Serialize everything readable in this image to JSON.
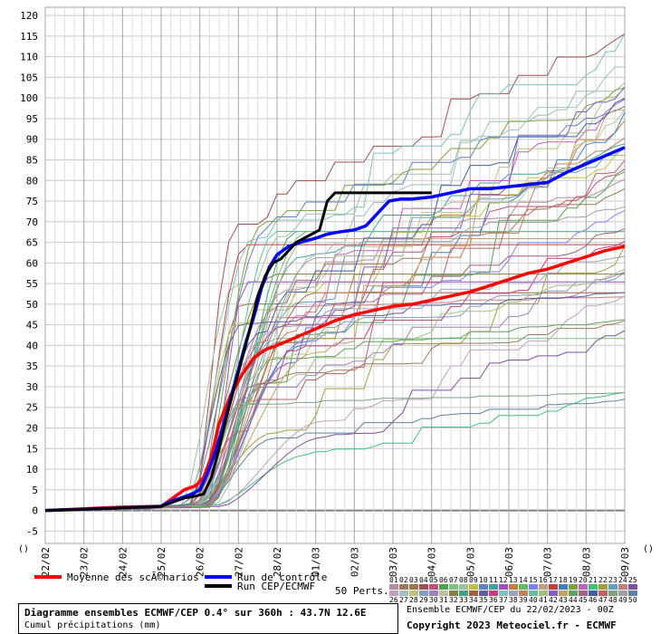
{
  "chart_data": {
    "type": "line",
    "title": "Diagramme ensembles ECMWF/CEP 0.4° sur 360h : 43.7N 12.6E",
    "subtitle": "Cumul précipitations (mm)",
    "ylim": [
      -8,
      122
    ],
    "yticks": [
      -5,
      0,
      5,
      10,
      15,
      20,
      25,
      30,
      35,
      40,
      45,
      50,
      55,
      60,
      65,
      70,
      75,
      80,
      85,
      90,
      95,
      100,
      105,
      110,
      115,
      120
    ],
    "xlim": [
      0,
      15
    ],
    "x_dates": [
      "22/02",
      "23/02",
      "24/02",
      "25/02",
      "26/02",
      "27/02",
      "28/02",
      "01/03",
      "02/03",
      "03/03",
      "04/03",
      "05/03",
      "06/03",
      "07/03",
      "08/03",
      "09/03"
    ],
    "grid": true,
    "series": [
      {
        "name": "Moyenne des scÃ©narios",
        "color": "#ff0000",
        "width": 3.5,
        "x": [
          0,
          0.5,
          1,
          1.5,
          2,
          2.5,
          3,
          3.3,
          3.6,
          3.9,
          4.1,
          4.3,
          4.5,
          4.8,
          5.1,
          5.4,
          5.7,
          6,
          6.5,
          7,
          7.5,
          8,
          8.5,
          9,
          9.5,
          10,
          10.5,
          11,
          11.5,
          12,
          12.5,
          13,
          13.5,
          14,
          14.5,
          15
        ],
        "y": [
          0,
          0.2,
          0.4,
          0.6,
          0.8,
          0.9,
          1,
          3,
          5,
          6,
          8,
          13,
          21,
          28,
          33,
          37,
          39,
          40,
          42,
          44,
          46,
          47.5,
          48.5,
          49.5,
          50,
          51,
          52,
          53,
          54.5,
          56,
          57.5,
          58.5,
          60,
          61.5,
          63,
          64
        ]
      },
      {
        "name": "Run de contrôle",
        "color": "#0000ff",
        "width": 3.5,
        "x": [
          0,
          1,
          2,
          3,
          3.2,
          3.5,
          3.8,
          4,
          4.2,
          4.4,
          4.6,
          4.8,
          5,
          5.2,
          5.4,
          5.6,
          5.8,
          6,
          6.3,
          6.6,
          7,
          7.3,
          7.6,
          8,
          8.3,
          8.6,
          8.9,
          9.2,
          9.5,
          10,
          10.5,
          11,
          11.5,
          12,
          12.5,
          13,
          13.5,
          14,
          14.5,
          15
        ],
        "y": [
          0,
          0.3,
          0.6,
          1,
          2,
          3,
          4,
          5,
          9,
          14,
          20,
          27,
          34,
          41,
          47,
          54,
          59,
          62,
          64,
          65,
          66,
          67,
          67.5,
          68,
          69,
          72,
          75,
          75.5,
          75.5,
          76,
          77,
          78,
          78,
          78.5,
          79,
          79.5,
          82,
          84,
          86,
          88
        ]
      },
      {
        "name": "Run CEP/ECMWF",
        "color": "#000000",
        "width": 3,
        "x": [
          0,
          1,
          2,
          3,
          3.3,
          3.6,
          3.9,
          4.1,
          4.3,
          4.5,
          4.7,
          4.9,
          5.1,
          5.3,
          5.5,
          5.7,
          5.9,
          6.1,
          6.3,
          6.5,
          6.7,
          6.9,
          7.1,
          7.3,
          7.5,
          7.8,
          8.2,
          8.6,
          9,
          9.5,
          10
        ],
        "y": [
          0,
          0.3,
          0.6,
          1,
          2,
          3,
          3.5,
          4,
          8,
          15,
          23,
          30,
          37,
          44,
          52,
          57,
          60,
          61,
          63,
          65,
          66,
          67,
          68,
          75,
          77,
          77,
          77,
          77,
          77,
          77,
          77
        ]
      }
    ],
    "legend": {
      "mean_label": "Moyenne des scÃ©narios",
      "control_label": "Run de contrôle",
      "cep_label": "Run CEP/ECMWF",
      "perts_label": "50 Perts.",
      "pert_numbers_row1": [
        "01",
        "02",
        "03",
        "04",
        "05",
        "06",
        "07",
        "08",
        "09",
        "10",
        "11",
        "12",
        "13",
        "14",
        "15",
        "16",
        "17",
        "18",
        "19",
        "20",
        "21",
        "22",
        "23",
        "24",
        "25"
      ],
      "pert_numbers_row2": [
        "26",
        "27",
        "28",
        "29",
        "30",
        "31",
        "32",
        "33",
        "34",
        "35",
        "36",
        "37",
        "38",
        "39",
        "40",
        "41",
        "42",
        "43",
        "44",
        "45",
        "46",
        "47",
        "48",
        "49",
        "50"
      ],
      "pert_colors": [
        "#b48ca0",
        "#a0785a",
        "#9c7850",
        "#a05050",
        "#c05080",
        "#50a050",
        "#80c080",
        "#a0c0a0",
        "#c0c040",
        "#6080c0",
        "#40a0a0",
        "#a050c0",
        "#c08040",
        "#60c060",
        "#8080ff",
        "#c0a080",
        "#c04040",
        "#4080c0",
        "#80a040",
        "#c060c0",
        "#40c080",
        "#a0a040",
        "#60a0c0",
        "#c08080",
        "#8050a0",
        "#c0a0c0",
        "#a0c0c0",
        "#c0c080",
        "#80a0c0",
        "#a080c0",
        "#c0c0a0",
        "#808040",
        "#40a080",
        "#a06040",
        "#6060a0",
        "#c04080",
        "#80c0c0",
        "#a0a0c0",
        "#c08060",
        "#60c0a0",
        "#a0c080",
        "#8060c0",
        "#c0a060",
        "#60a060",
        "#a06080",
        "#4060a0",
        "#c06060",
        "#80a080",
        "#a0a0a0",
        "#6080a0"
      ]
    },
    "axis_symbols": [
      "()",
      "()"
    ]
  },
  "footer": {
    "title": "Diagramme ensembles ECMWF/CEP 0.4° sur 360h : 43.7N 12.6E",
    "subtitle": "Cumul précipitations (mm)",
    "ensemble_info": "Ensemble ECMWF/CEP du 22/02/2023 - 00Z",
    "copyright": "Copyright 2023 Meteociel.fr - ECMWF"
  }
}
